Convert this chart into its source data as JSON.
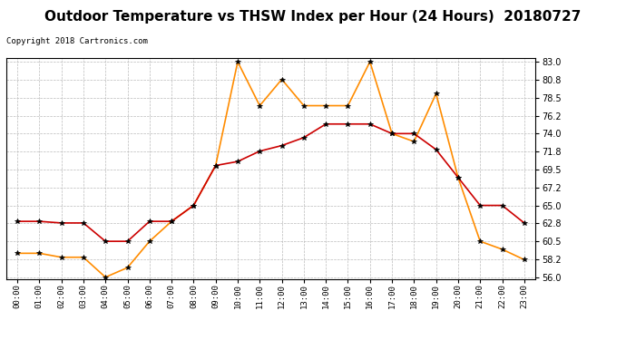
{
  "title": "Outdoor Temperature vs THSW Index per Hour (24 Hours)  20180727",
  "copyright": "Copyright 2018 Cartronics.com",
  "hours": [
    "00:00",
    "01:00",
    "02:00",
    "03:00",
    "04:00",
    "05:00",
    "06:00",
    "07:00",
    "08:00",
    "09:00",
    "10:00",
    "11:00",
    "12:00",
    "13:00",
    "14:00",
    "15:00",
    "16:00",
    "17:00",
    "18:00",
    "19:00",
    "20:00",
    "21:00",
    "22:00",
    "23:00"
  ],
  "temperature": [
    63.0,
    63.0,
    62.8,
    62.8,
    60.5,
    60.5,
    63.0,
    63.0,
    65.0,
    70.0,
    70.5,
    71.8,
    72.5,
    73.5,
    75.2,
    75.2,
    75.2,
    74.0,
    74.0,
    72.0,
    68.5,
    65.0,
    65.0,
    62.8
  ],
  "thsw": [
    59.0,
    59.0,
    58.5,
    58.5,
    56.0,
    57.2,
    60.5,
    63.0,
    65.0,
    70.0,
    83.0,
    77.5,
    80.8,
    77.5,
    77.5,
    77.5,
    83.0,
    74.0,
    73.0,
    79.0,
    68.5,
    60.5,
    59.5,
    58.2
  ],
  "temp_color": "#cc0000",
  "thsw_color": "#ff8c00",
  "marker": "*",
  "ylim_min": 56.0,
  "ylim_max": 83.0,
  "yticks": [
    56.0,
    58.2,
    60.5,
    62.8,
    65.0,
    67.2,
    69.5,
    71.8,
    74.0,
    76.2,
    78.5,
    80.8,
    83.0
  ],
  "background_color": "#ffffff",
  "grid_color": "#bbbbbb",
  "title_fontsize": 11,
  "legend_thsw_bg": "#ff8c00",
  "legend_temp_bg": "#cc0000"
}
